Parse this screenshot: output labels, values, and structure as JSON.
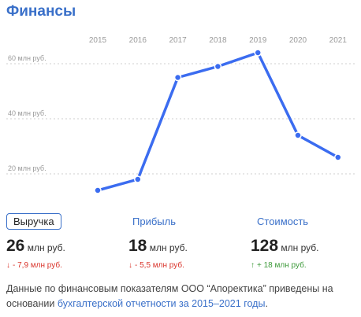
{
  "header": {
    "title": "Финансы"
  },
  "chart_data": {
    "type": "line",
    "title": "",
    "xlabel": "",
    "ylabel": "",
    "x": [
      "2015",
      "2016",
      "2017",
      "2018",
      "2019",
      "2020",
      "2021"
    ],
    "series": [
      {
        "values": [
          14,
          18,
          55,
          59,
          64,
          34,
          26
        ]
      }
    ],
    "y_ticks": [
      {
        "value": 20,
        "label": "20 млн руб."
      },
      {
        "value": 40,
        "label": "40 млн руб."
      },
      {
        "value": 60,
        "label": "60 млн руб."
      }
    ],
    "ylim": [
      10,
      70
    ],
    "grid": true,
    "line_color": "#3b6cf0"
  },
  "metrics": [
    {
      "label": "Выручка",
      "value": "26",
      "unit": "млн руб.",
      "arrow": "↓",
      "change": "- 7,9 млн руб.",
      "trend": "down",
      "active": true
    },
    {
      "label": "Прибыль",
      "value": "18",
      "unit": "млн руб.",
      "arrow": "↓",
      "change": "- 5,5 млн руб.",
      "trend": "down",
      "active": false
    },
    {
      "label": "Стоимость",
      "value": "128",
      "unit": "млн руб.",
      "arrow": "↑",
      "change": "+ 18 млн руб.",
      "trend": "up",
      "active": false
    }
  ],
  "note": {
    "text": "Данные по финансовым показателям ООО “Апоректика” приведены на основании ",
    "link": "бухгалтерской отчетности за 2015–2021 годы",
    "end": "."
  },
  "colors": {
    "accent": "#3a70c9",
    "negative": "#d9342b",
    "positive": "#3d9a3a"
  }
}
